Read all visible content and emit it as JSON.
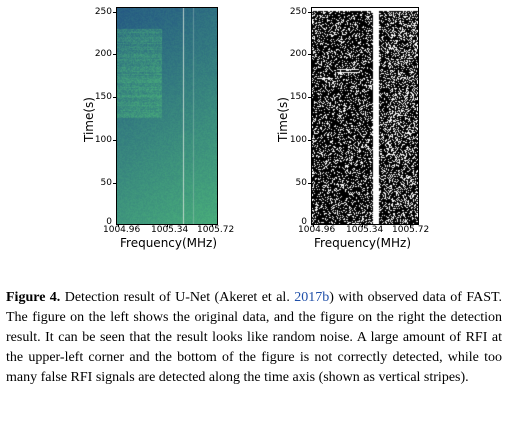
{
  "left_panel": {
    "ylabel": "Time(s)",
    "xlabel": "Frequency(MHz)",
    "yticks": [
      "250",
      "200",
      "150",
      "100",
      "50",
      "0"
    ],
    "xticks": [
      "1004.96",
      "1005.34",
      "1005.72"
    ]
  },
  "right_panel": {
    "ylabel": "Time(s)",
    "xlabel": "Frequency(MHz)",
    "yticks": [
      "250",
      "200",
      "150",
      "100",
      "50",
      "0"
    ],
    "xticks": [
      "1004.96",
      "1005.34",
      "1005.72"
    ]
  },
  "caption": {
    "figure_label": "Figure 4.",
    "text_before_link": "Detection result of U-Net (Akeret et al. ",
    "link_text": "2017b",
    "text_after_link": ") with observed data of FAST. The figure on the left shows the original data, and the figure on the right the detection result. It can be seen that the result looks like random noise. A large amount of RFI at the upper-left corner and the bottom of the figure is not correctly detected, while too many false RFI signals are detected along the time axis (shown as vertical stripes)."
  },
  "colors": {
    "link": "#1f4fa8",
    "heatmap_low": "#1d3f6e",
    "heatmap_high": "#3fb38a"
  }
}
